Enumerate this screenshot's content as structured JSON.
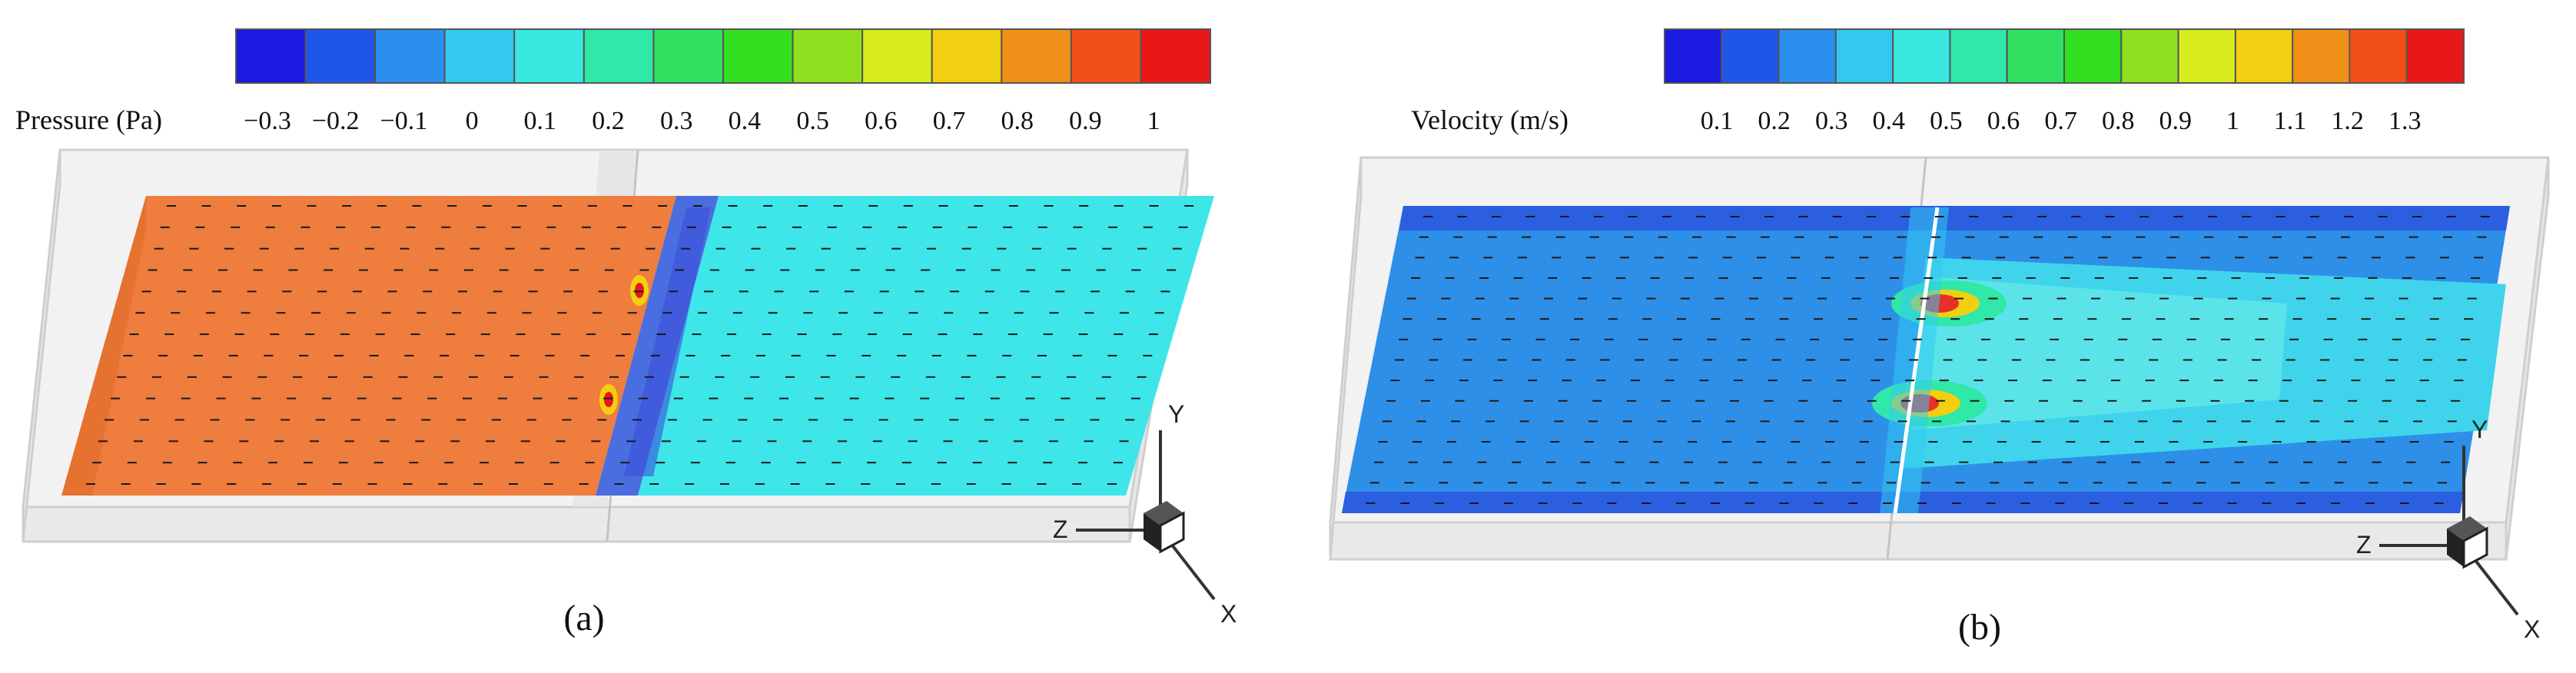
{
  "figure": {
    "panel_a": {
      "caption": "(a)",
      "colorbar": {
        "title": "Pressure (Pa)",
        "ticks": [
          "−0.3",
          "−0.2",
          "−0.1",
          "0",
          "0.1",
          "0.2",
          "0.3",
          "0.4",
          "0.5",
          "0.6",
          "0.7",
          "0.8",
          "0.9",
          "1"
        ],
        "colors": [
          "#1a1ae0",
          "#1f55e8",
          "#2b8ff0",
          "#33c8f0",
          "#38e8e0",
          "#30e8a8",
          "#30e060",
          "#33e020",
          "#90e020",
          "#d8ec20",
          "#f0d010",
          "#f09018",
          "#f05018",
          "#e81818"
        ]
      },
      "field_colors": {
        "upstream": "#ee7d3e",
        "downstream": "#3ee6ea",
        "band": "#4a6ee0"
      },
      "axes": {
        "x": "X",
        "y": "Y",
        "z": "Z"
      }
    },
    "panel_b": {
      "caption": "(b)",
      "colorbar": {
        "title": "Velocity (m/s)",
        "ticks": [
          "0.1",
          "0.2",
          "0.3",
          "0.4",
          "0.5",
          "0.6",
          "0.7",
          "0.8",
          "0.9",
          "1",
          "1.1",
          "1.2",
          "1.3"
        ],
        "colors": [
          "#1a1ae0",
          "#1f55e8",
          "#2b8ff0",
          "#33c8f0",
          "#38e8e0",
          "#30e8a8",
          "#30e060",
          "#33e020",
          "#90e020",
          "#d8ec20",
          "#f0d010",
          "#f09018",
          "#f05018",
          "#e81818"
        ]
      },
      "field_colors": {
        "base": "#2e8fe8",
        "edge": "#2b5fe0",
        "jet": "#3fd4ec",
        "hot": "#e8302a"
      },
      "axes": {
        "x": "X",
        "y": "Y",
        "z": "Z"
      }
    }
  }
}
